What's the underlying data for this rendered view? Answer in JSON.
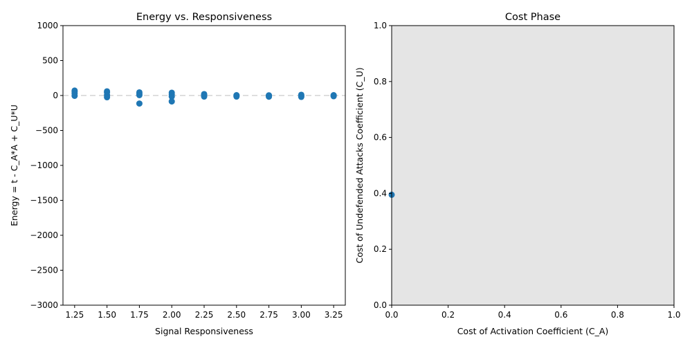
{
  "figure": {
    "background": "#ffffff",
    "marker_color": "#1f77b4",
    "zero_line_color": "#d3d3d3",
    "phase_fill": "#e5e5e5"
  },
  "chart_data": [
    {
      "type": "scatter",
      "title": "Energy vs. Responsiveness",
      "xlabel": "Signal Responsiveness",
      "ylabel": "Energy = t - C_A*A + C_U*U",
      "xlim": [
        1.16,
        3.34
      ],
      "ylim": [
        -3000,
        1000
      ],
      "xticks": [
        "1.25",
        "1.50",
        "1.75",
        "2.00",
        "2.25",
        "2.50",
        "2.75",
        "3.00",
        "3.25"
      ],
      "xtick_values": [
        1.25,
        1.5,
        1.75,
        2.0,
        2.25,
        2.5,
        2.75,
        3.0,
        3.25
      ],
      "yticks": [
        "1000",
        "500",
        "0",
        "−500",
        "−1000",
        "−1500",
        "−2000",
        "−2500",
        "−3000"
      ],
      "ytick_values": [
        1000,
        500,
        0,
        -500,
        -1000,
        -1500,
        -2000,
        -2500,
        -3000
      ],
      "reference_line": {
        "y": 0,
        "style": "dashed"
      },
      "grid": false,
      "points": [
        {
          "x": 1.25,
          "y": 70
        },
        {
          "x": 1.25,
          "y": 55
        },
        {
          "x": 1.25,
          "y": 30
        },
        {
          "x": 1.25,
          "y": -5
        },
        {
          "x": 1.5,
          "y": 60
        },
        {
          "x": 1.5,
          "y": 45
        },
        {
          "x": 1.5,
          "y": 5
        },
        {
          "x": 1.5,
          "y": -25
        },
        {
          "x": 1.75,
          "y": 45
        },
        {
          "x": 1.75,
          "y": 25
        },
        {
          "x": 1.75,
          "y": 5
        },
        {
          "x": 1.75,
          "y": -115
        },
        {
          "x": 2.0,
          "y": 40
        },
        {
          "x": 2.0,
          "y": 15
        },
        {
          "x": 2.0,
          "y": -15
        },
        {
          "x": 2.0,
          "y": -85
        },
        {
          "x": 2.25,
          "y": 20
        },
        {
          "x": 2.25,
          "y": 5
        },
        {
          "x": 2.25,
          "y": -15
        },
        {
          "x": 2.5,
          "y": 5
        },
        {
          "x": 2.5,
          "y": -5
        },
        {
          "x": 2.5,
          "y": -15
        },
        {
          "x": 2.75,
          "y": 3
        },
        {
          "x": 2.75,
          "y": -7
        },
        {
          "x": 2.75,
          "y": -17
        },
        {
          "x": 3.0,
          "y": 10
        },
        {
          "x": 3.0,
          "y": -5
        },
        {
          "x": 3.0,
          "y": -20
        },
        {
          "x": 3.25,
          "y": 5
        },
        {
          "x": 3.25,
          "y": -5
        },
        {
          "x": 3.25,
          "y": -10
        }
      ]
    },
    {
      "type": "area",
      "title": "Cost Phase",
      "xlabel": "Cost of Activation Coefficient (C_A)",
      "ylabel": "Cost of Undefended Attacks Coefficient (C_U)",
      "xlim": [
        0,
        1
      ],
      "ylim": [
        0,
        1
      ],
      "xticks": [
        "0.0",
        "0.2",
        "0.4",
        "0.6",
        "0.8",
        "1.0"
      ],
      "xtick_values": [
        0,
        0.2,
        0.4,
        0.6,
        0.8,
        1.0
      ],
      "yticks": [
        "0.0",
        "0.2",
        "0.4",
        "0.6",
        "0.8",
        "1.0"
      ],
      "ytick_values": [
        0,
        0.2,
        0.4,
        0.6,
        0.8,
        1.0
      ],
      "grid": false,
      "filled_region": "entire plot area",
      "points": [
        {
          "x": 0.0,
          "y": 0.395
        }
      ]
    }
  ]
}
